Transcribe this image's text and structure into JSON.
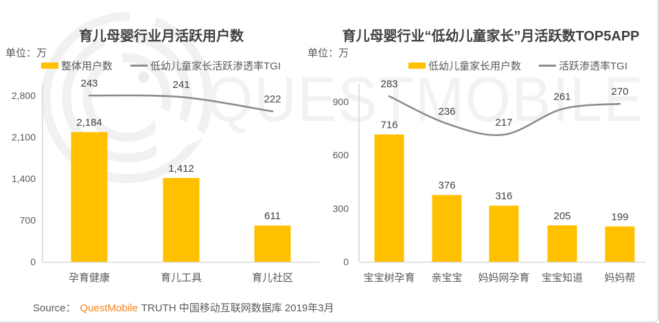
{
  "watermark": {
    "text": "QUESTMOBILE"
  },
  "colors": {
    "bar": "#ffc000",
    "line": "#8c8c8c",
    "title": "#3f3f3f",
    "label": "#404040",
    "axis_text": "#595959",
    "axis_line": "#d9d9d9",
    "brand_orange": "#f5821f",
    "watermark": "#f2f2f2"
  },
  "footer": {
    "source_label": "Source：",
    "brand": "QuestMobile",
    "suffix": "TRUTH 中国移动互联网数据库 2019年3月"
  },
  "chart_data": [
    {
      "type": "bar",
      "title": "育儿母婴行业月活跃用户数",
      "unit_label": "单位：万",
      "legend_position": "top",
      "grid": false,
      "legend": [
        {
          "label": "整体用户数",
          "marker": "bar"
        },
        {
          "label": "低幼儿童家长活跃渗透率TGI",
          "marker": "line"
        }
      ],
      "categories": [
        "孕育健康",
        "育儿工具",
        "育儿社区"
      ],
      "series": [
        {
          "name": "整体用户数",
          "type": "bar",
          "values": [
            2184,
            1412,
            611
          ],
          "value_labels": [
            "2,184",
            "1,412",
            "611"
          ]
        },
        {
          "name": "低幼儿童家长活跃渗透率TGI",
          "type": "line",
          "values": [
            243,
            241,
            222
          ],
          "value_labels": [
            "243",
            "241",
            "222"
          ]
        }
      ],
      "ylabel": "",
      "xlabel": "",
      "ylim": [
        0,
        2800
      ],
      "ytick_values": [
        0,
        700,
        1400,
        2100,
        2800
      ],
      "ytick_labels": [
        "0",
        "700",
        "1,400",
        "2,100",
        "2,800"
      ]
    },
    {
      "type": "bar",
      "title": "育儿母婴行业“低幼儿童家长”月活跃数TOP5APP",
      "unit_label": "单位：万",
      "legend_position": "top",
      "grid": false,
      "legend": [
        {
          "label": "低幼儿童家长用户数",
          "marker": "bar"
        },
        {
          "label": "活跃渗透率TGI",
          "marker": "line"
        }
      ],
      "categories": [
        "宝宝树孕育",
        "亲宝宝",
        "妈妈网孕育",
        "宝宝知道",
        "妈妈帮"
      ],
      "series": [
        {
          "name": "低幼儿童家长用户数",
          "type": "bar",
          "values": [
            716,
            376,
            316,
            205,
            199
          ],
          "value_labels": [
            "716",
            "376",
            "316",
            "205",
            "199"
          ]
        },
        {
          "name": "活跃渗透率TGI",
          "type": "line",
          "values": [
            283,
            236,
            217,
            261,
            270
          ],
          "value_labels": [
            "283",
            "236",
            "217",
            "261",
            "270"
          ]
        }
      ],
      "ylabel": "",
      "xlabel": "",
      "ylim": [
        0,
        900
      ],
      "ytick_values": [
        0,
        300,
        600,
        900
      ],
      "ytick_labels": [
        "0",
        "300",
        "600",
        "900"
      ]
    }
  ]
}
